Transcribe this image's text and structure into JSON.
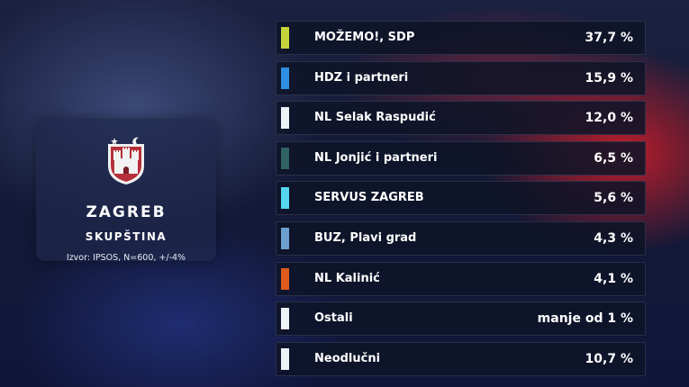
{
  "card": {
    "city": "ZAGREB",
    "body": "SKUPŠTINA",
    "source": "Izvor: IPSOS, N=600, +/-4%"
  },
  "rows": [
    {
      "name": "MOŽEMO!, SDP",
      "value": "37,7 %",
      "color": "#c6d43c"
    },
    {
      "name": "HDZ i partneri",
      "value": "15,9 %",
      "color": "#2d8fe2"
    },
    {
      "name": "NL Selak Raspudić",
      "value": "12,0 %",
      "color": "#eef4f6"
    },
    {
      "name": "NL Jonjić i partneri",
      "value": "6,5 %",
      "color": "#2f6262"
    },
    {
      "name": "SERVUS ZAGREB",
      "value": "5,6 %",
      "color": "#55d8f0"
    },
    {
      "name": "BUZ, Plavi grad",
      "value": "4,3 %",
      "color": "#6d9fcf"
    },
    {
      "name": "NL Kalinić",
      "value": "4,1 %",
      "color": "#e05a1c"
    },
    {
      "name": "Ostali",
      "value": "manje od 1 %",
      "color": "#eef4f6"
    },
    {
      "name": "Neodlučni",
      "value": "10,7 %",
      "color": "#eef4f6"
    }
  ]
}
